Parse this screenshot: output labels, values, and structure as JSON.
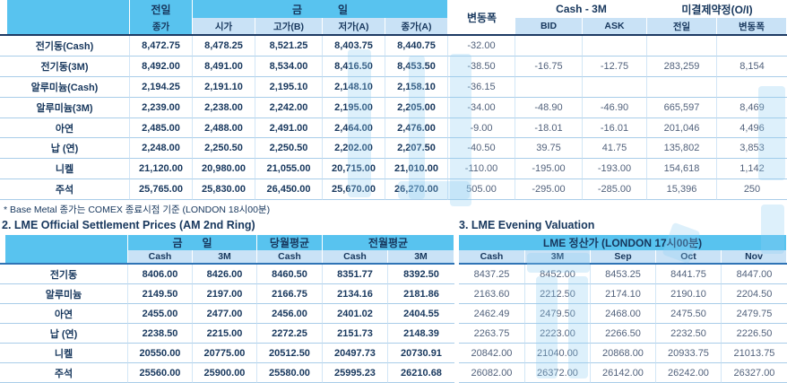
{
  "colors": {
    "header_cyan": "#58c3ef",
    "header_light_blue": "#c9e2f6",
    "text_navy": "#17375d",
    "text_soft": "#52627c",
    "grid_line": "#a9cde9",
    "watermark": "#8ecdf1"
  },
  "table1": {
    "group_headers": {
      "prev_top": "전일",
      "prev_bottom": "종가",
      "today_left": "금",
      "today_right": "일",
      "change": "변동폭",
      "cash_3m": "Cash - 3M",
      "open_interest": "미결제약정(O/I)"
    },
    "sub_headers": {
      "open": "시가",
      "high": "고가(B)",
      "low": "저가(A)",
      "close": "종가(A)",
      "bid": "BID",
      "ask": "ASK",
      "oi_prev": "전일",
      "oi_change": "변동폭"
    },
    "rows": [
      {
        "label": "전기동(Cash)",
        "prev_close": "8,472.75",
        "open": "8,478.25",
        "high": "8,521.25",
        "low": "8,403.75",
        "close": "8,440.75",
        "change": "-32.00",
        "bid": "",
        "ask": "",
        "oi_prev": "",
        "oi_change": ""
      },
      {
        "label": "전기동(3M)",
        "prev_close": "8,492.00",
        "open": "8,491.00",
        "high": "8,534.00",
        "low": "8,416.50",
        "close": "8,453.50",
        "change": "-38.50",
        "bid": "-16.75",
        "ask": "-12.75",
        "oi_prev": "283,259",
        "oi_change": "8,154"
      },
      {
        "label": "알루미늄(Cash)",
        "prev_close": "2,194.25",
        "open": "2,191.10",
        "high": "2,195.10",
        "low": "2,148.10",
        "close": "2,158.10",
        "change": "-36.15",
        "bid": "",
        "ask": "",
        "oi_prev": "",
        "oi_change": ""
      },
      {
        "label": "알루미늄(3M)",
        "prev_close": "2,239.00",
        "open": "2,238.00",
        "high": "2,242.00",
        "low": "2,195.00",
        "close": "2,205.00",
        "change": "-34.00",
        "bid": "-48.90",
        "ask": "-46.90",
        "oi_prev": "665,597",
        "oi_change": "8,469"
      },
      {
        "label": "아연",
        "prev_close": "2,485.00",
        "open": "2,488.00",
        "high": "2,491.00",
        "low": "2,464.00",
        "close": "2,476.00",
        "change": "-9.00",
        "bid": "-18.01",
        "ask": "-16.01",
        "oi_prev": "201,046",
        "oi_change": "4,496"
      },
      {
        "label": "납 (연)",
        "prev_close": "2,248.00",
        "open": "2,250.50",
        "high": "2,250.50",
        "low": "2,202.00",
        "close": "2,207.50",
        "change": "-40.50",
        "bid": "39.75",
        "ask": "41.75",
        "oi_prev": "135,802",
        "oi_change": "3,853"
      },
      {
        "label": "니켈",
        "prev_close": "21,120.00",
        "open": "20,980.00",
        "high": "21,055.00",
        "low": "20,715.00",
        "close": "21,010.00",
        "change": "-110.00",
        "bid": "-195.00",
        "ask": "-193.00",
        "oi_prev": "154,618",
        "oi_change": "1,142"
      },
      {
        "label": "주석",
        "prev_close": "25,765.00",
        "open": "25,830.00",
        "high": "26,450.00",
        "low": "25,670.00",
        "close": "26,270.00",
        "change": "505.00",
        "bid": "-295.00",
        "ask": "-285.00",
        "oi_prev": "15,396",
        "oi_change": "250"
      }
    ]
  },
  "footnote": "* Base Metal 종가는 COMEX 종료시점 기준 (LONDON 18시00분)",
  "section2": {
    "title": "2. LME Official Settlement Prices (AM 2nd Ring)",
    "group_headers": {
      "today_left": "금",
      "today_right": "일",
      "month_avg": "당월평균",
      "prev_month_avg": "전월평균"
    },
    "sub_headers": {
      "today_cash": "Cash",
      "today_3m": "3M",
      "month_cash": "Cash",
      "prev_cash": "Cash",
      "prev_3m": "3M"
    },
    "rows": [
      {
        "label": "전기동",
        "today_cash": "8406.00",
        "today_3m": "8426.00",
        "month_cash": "8460.50",
        "prev_cash": "8351.77",
        "prev_3m": "8392.50"
      },
      {
        "label": "알루미늄",
        "today_cash": "2149.50",
        "today_3m": "2197.00",
        "month_cash": "2166.75",
        "prev_cash": "2134.16",
        "prev_3m": "2181.86"
      },
      {
        "label": "아연",
        "today_cash": "2455.00",
        "today_3m": "2477.00",
        "month_cash": "2456.00",
        "prev_cash": "2401.02",
        "prev_3m": "2404.55"
      },
      {
        "label": "납 (연)",
        "today_cash": "2238.50",
        "today_3m": "2215.00",
        "month_cash": "2272.25",
        "prev_cash": "2151.73",
        "prev_3m": "2148.39"
      },
      {
        "label": "니켈",
        "today_cash": "20550.00",
        "today_3m": "20775.00",
        "month_cash": "20512.50",
        "prev_cash": "20497.73",
        "prev_3m": "20730.91"
      },
      {
        "label": "주석",
        "today_cash": "25560.00",
        "today_3m": "25900.00",
        "month_cash": "25580.00",
        "prev_cash": "25995.23",
        "prev_3m": "26210.68"
      }
    ]
  },
  "section3": {
    "title": "3. LME Evening Valuation",
    "header": "LME 정산가 (LONDON 17시00분)",
    "columns": {
      "cash": "Cash",
      "m3": "3M",
      "sep": "Sep",
      "oct": "Oct",
      "nov": "Nov"
    },
    "rows": [
      {
        "cash": "8437.25",
        "m3": "8452.00",
        "sep": "8453.25",
        "oct": "8441.75",
        "nov": "8447.00"
      },
      {
        "cash": "2163.60",
        "m3": "2212.50",
        "sep": "2174.10",
        "oct": "2190.10",
        "nov": "2204.50"
      },
      {
        "cash": "2462.49",
        "m3": "2479.50",
        "sep": "2468.00",
        "oct": "2475.50",
        "nov": "2479.75"
      },
      {
        "cash": "2263.75",
        "m3": "2223.00",
        "sep": "2266.50",
        "oct": "2232.50",
        "nov": "2226.50"
      },
      {
        "cash": "20842.00",
        "m3": "21040.00",
        "sep": "20868.00",
        "oct": "20933.75",
        "nov": "21013.75"
      },
      {
        "cash": "26082.00",
        "m3": "26372.00",
        "sep": "26142.00",
        "oct": "26242.00",
        "nov": "26327.00"
      }
    ]
  }
}
